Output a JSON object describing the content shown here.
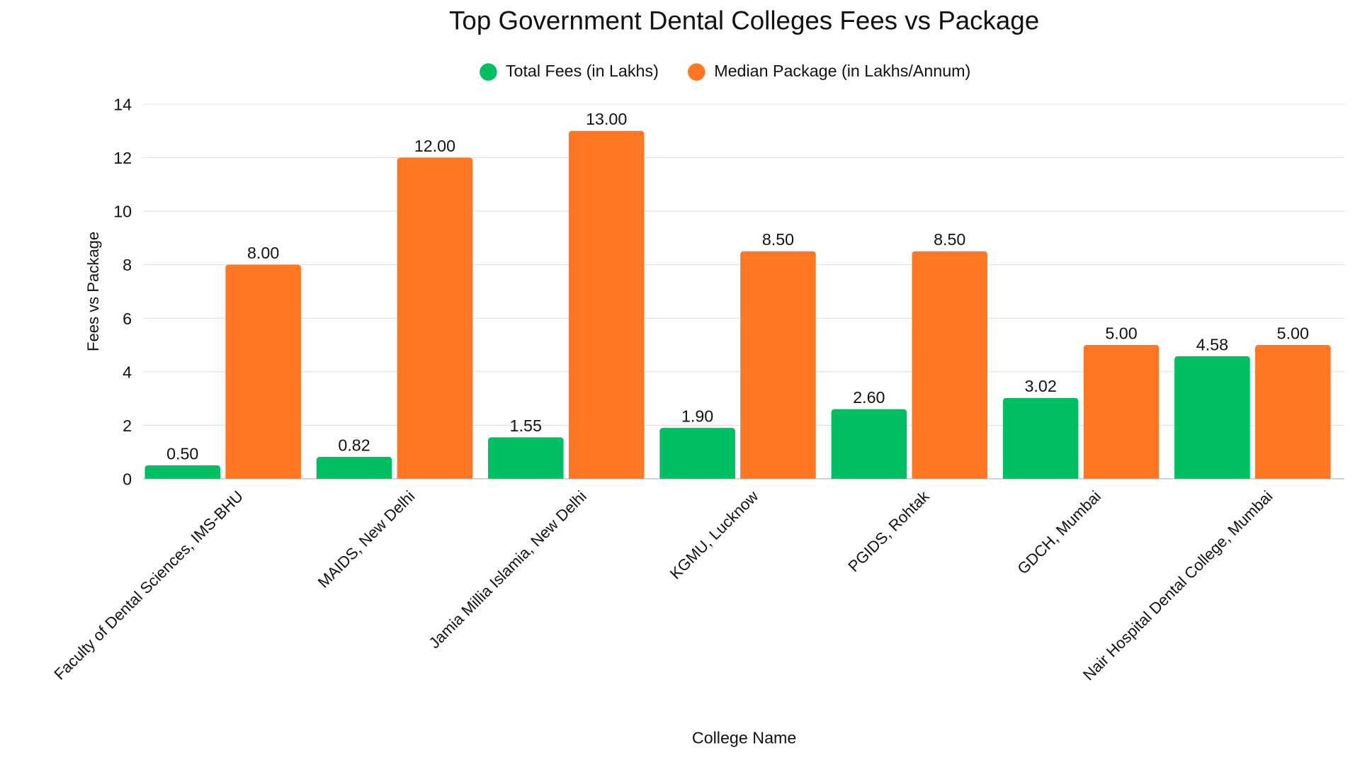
{
  "chart_data": {
    "type": "bar",
    "title": "Top Government Dental Colleges Fees vs Package",
    "xlabel": "College Name",
    "ylabel": "Fees vs Package",
    "ylim": [
      0,
      14
    ],
    "yticks": [
      0,
      2,
      4,
      6,
      8,
      10,
      12,
      14
    ],
    "grid": true,
    "legend_position": "top-center",
    "categories": [
      "Faculty of Dental Sciences, IMS-BHU",
      "MAIDS, New Delhi",
      "Jamia Millia Islamia, New Delhi",
      "KGMU, Lucknow",
      "PGIDS, Rohtak",
      "GDCH, Mumbai",
      "Nair Hospital Dental College, Mumbai"
    ],
    "series": [
      {
        "name": "Total Fees (in Lakhs)",
        "color": "#00BF63",
        "values": [
          0.5,
          0.82,
          1.55,
          1.9,
          2.6,
          3.02,
          4.58
        ]
      },
      {
        "name": "Median Package (in Lakhs/Annum)",
        "color": "#FF7722",
        "values": [
          8.0,
          12.0,
          13.0,
          8.5,
          8.5,
          5.0,
          5.0
        ]
      }
    ]
  }
}
